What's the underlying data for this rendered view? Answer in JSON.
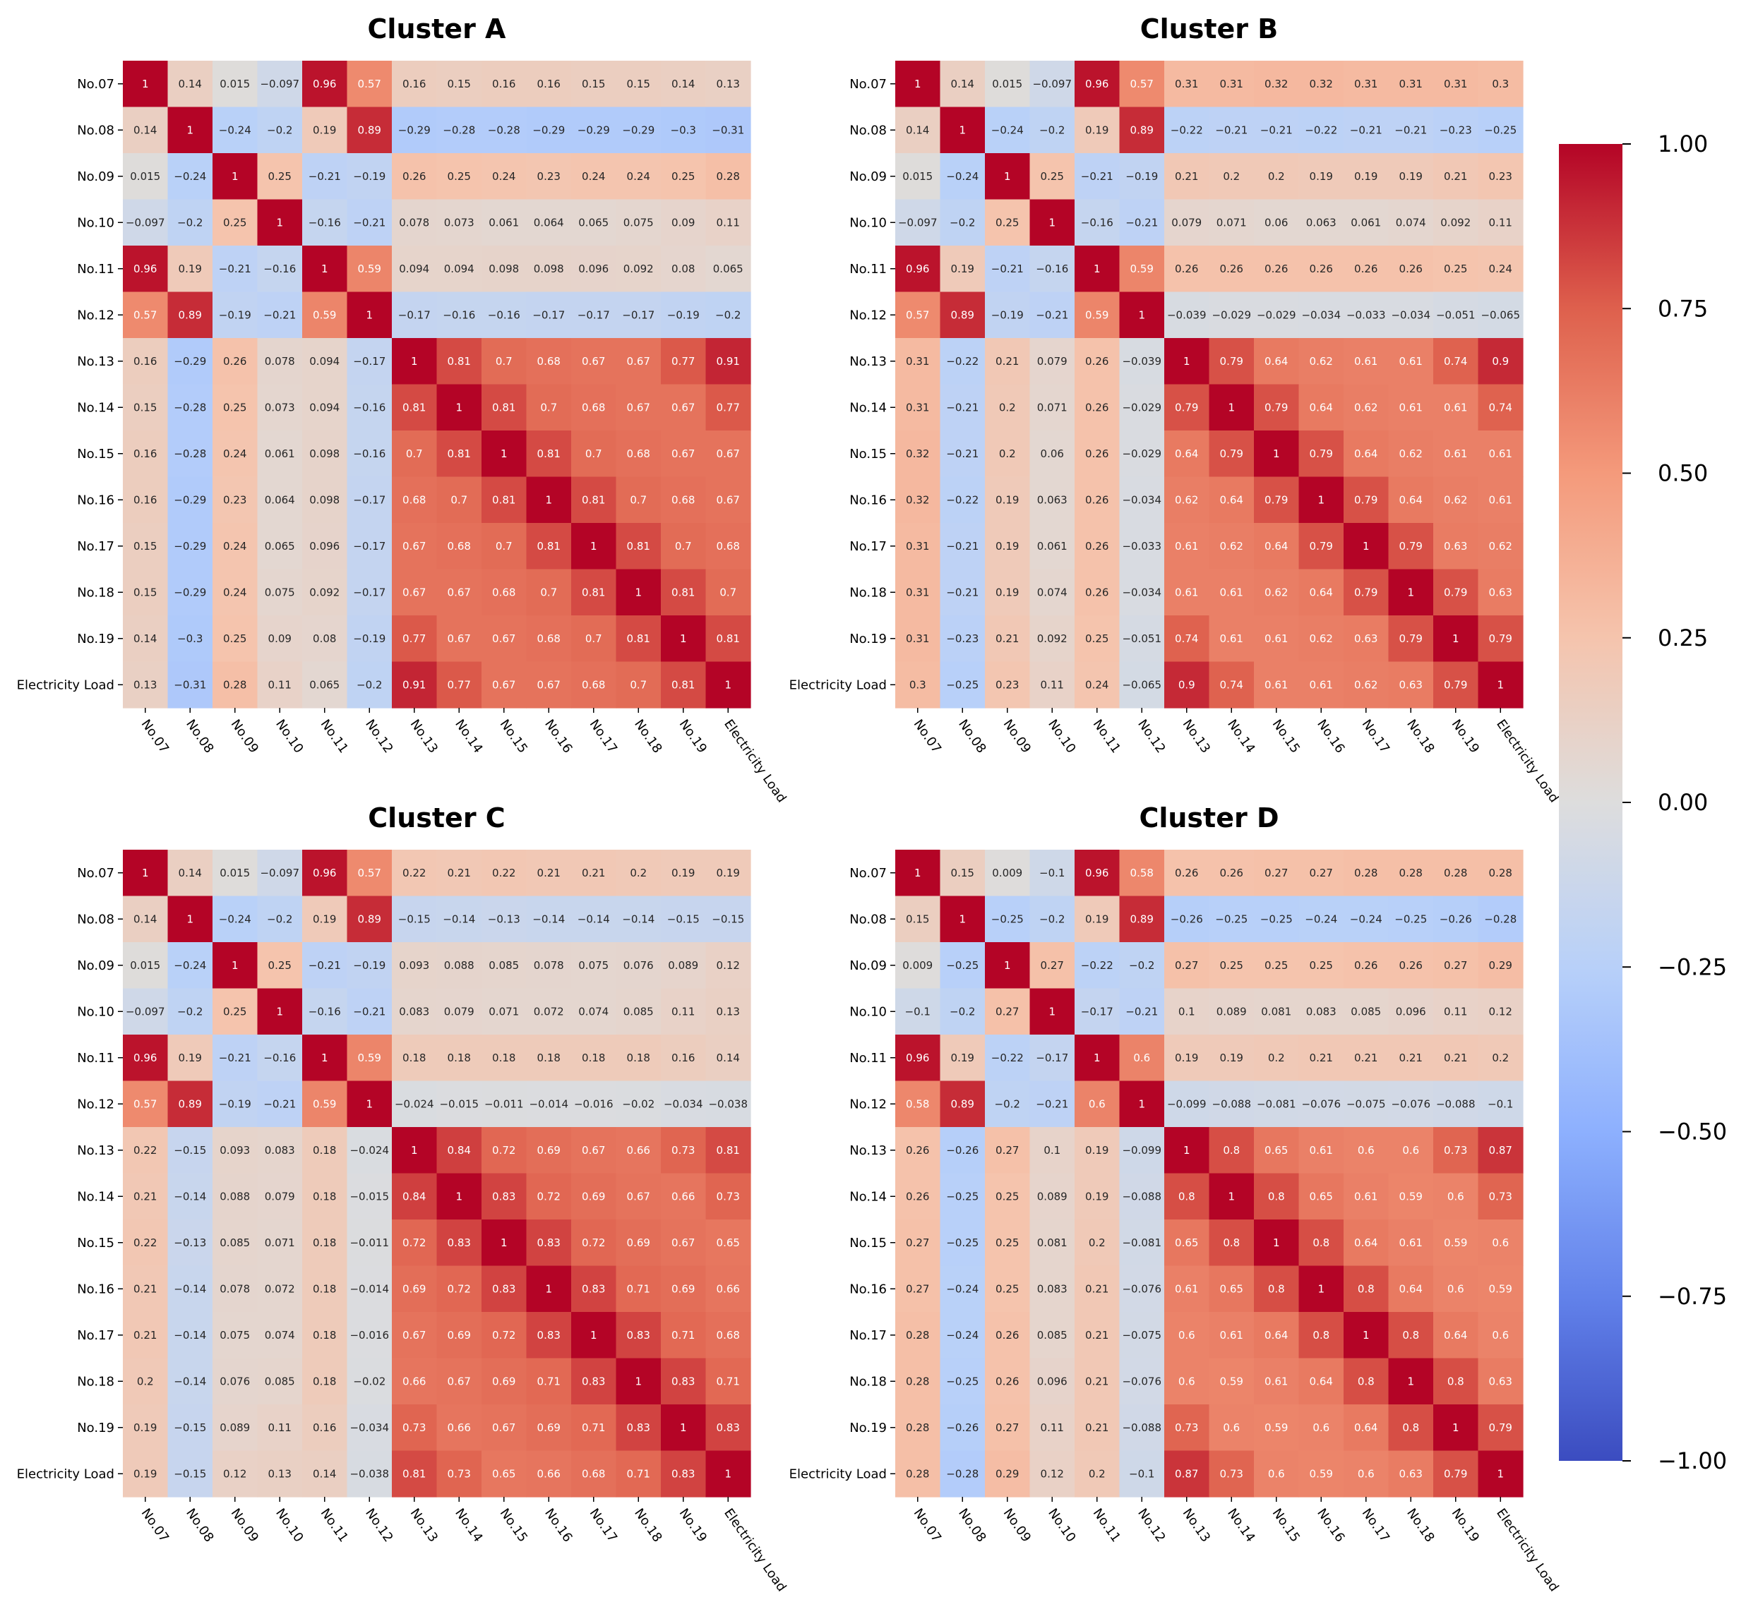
{
  "chart_data": [
    {
      "type": "heatmap",
      "title": "Cluster A",
      "labels": [
        "No.07",
        "No.08",
        "No.09",
        "No.10",
        "No.11",
        "No.12",
        "No.13",
        "No.14",
        "No.15",
        "No.16",
        "No.17",
        "No.18",
        "No.19",
        "Electricity Load"
      ],
      "values": [
        [
          1,
          0.14,
          0.015,
          -0.097,
          0.96,
          0.57,
          0.16,
          0.15,
          0.16,
          0.16,
          0.15,
          0.15,
          0.14,
          0.13
        ],
        [
          0.14,
          1,
          -0.24,
          -0.2,
          0.19,
          0.89,
          -0.29,
          -0.28,
          -0.28,
          -0.29,
          -0.29,
          -0.29,
          -0.3,
          -0.31
        ],
        [
          0.015,
          -0.24,
          1,
          0.25,
          -0.21,
          -0.19,
          0.26,
          0.25,
          0.24,
          0.23,
          0.24,
          0.24,
          0.25,
          0.28
        ],
        [
          -0.097,
          -0.2,
          0.25,
          1,
          -0.16,
          -0.21,
          0.078,
          0.073,
          0.061,
          0.064,
          0.065,
          0.075,
          0.09,
          0.11
        ],
        [
          0.96,
          0.19,
          -0.21,
          -0.16,
          1,
          0.59,
          0.094,
          0.094,
          0.098,
          0.098,
          0.096,
          0.092,
          0.08,
          0.065
        ],
        [
          0.57,
          0.89,
          -0.19,
          -0.21,
          0.59,
          1,
          -0.17,
          -0.16,
          -0.16,
          -0.17,
          -0.17,
          -0.17,
          -0.19,
          -0.2
        ],
        [
          0.16,
          -0.29,
          0.26,
          0.078,
          0.094,
          -0.17,
          1,
          0.81,
          0.7,
          0.68,
          0.67,
          0.67,
          0.77,
          0.91
        ],
        [
          0.15,
          -0.28,
          0.25,
          0.073,
          0.094,
          -0.16,
          0.81,
          1,
          0.81,
          0.7,
          0.68,
          0.67,
          0.67,
          0.77
        ],
        [
          0.16,
          -0.28,
          0.24,
          0.061,
          0.098,
          -0.16,
          0.7,
          0.81,
          1,
          0.81,
          0.7,
          0.68,
          0.67,
          0.67
        ],
        [
          0.16,
          -0.29,
          0.23,
          0.064,
          0.098,
          -0.17,
          0.68,
          0.7,
          0.81,
          1,
          0.81,
          0.7,
          0.68,
          0.67
        ],
        [
          0.15,
          -0.29,
          0.24,
          0.065,
          0.096,
          -0.17,
          0.67,
          0.68,
          0.7,
          0.81,
          1,
          0.81,
          0.7,
          0.68
        ],
        [
          0.15,
          -0.29,
          0.24,
          0.075,
          0.092,
          -0.17,
          0.67,
          0.67,
          0.68,
          0.7,
          0.81,
          1,
          0.81,
          0.7
        ],
        [
          0.14,
          -0.3,
          0.25,
          0.09,
          0.08,
          -0.19,
          0.77,
          0.67,
          0.67,
          0.68,
          0.7,
          0.81,
          1,
          0.81
        ],
        [
          0.13,
          -0.31,
          0.28,
          0.11,
          0.065,
          -0.2,
          0.91,
          0.77,
          0.67,
          0.67,
          0.68,
          0.7,
          0.81,
          1
        ]
      ]
    },
    {
      "type": "heatmap",
      "title": "Cluster B",
      "labels": [
        "No.07",
        "No.08",
        "No.09",
        "No.10",
        "No.11",
        "No.12",
        "No.13",
        "No.14",
        "No.15",
        "No.16",
        "No.17",
        "No.18",
        "No.19",
        "Electricity Load"
      ],
      "values": [
        [
          1,
          0.14,
          0.015,
          -0.097,
          0.96,
          0.57,
          0.31,
          0.31,
          0.32,
          0.32,
          0.31,
          0.31,
          0.31,
          0.3
        ],
        [
          0.14,
          1,
          -0.24,
          -0.2,
          0.19,
          0.89,
          -0.22,
          -0.21,
          -0.21,
          -0.22,
          -0.21,
          -0.21,
          -0.23,
          -0.25
        ],
        [
          0.015,
          -0.24,
          1,
          0.25,
          -0.21,
          -0.19,
          0.21,
          0.2,
          0.2,
          0.19,
          0.19,
          0.19,
          0.21,
          0.23
        ],
        [
          -0.097,
          -0.2,
          0.25,
          1,
          -0.16,
          -0.21,
          0.079,
          0.071,
          0.06,
          0.063,
          0.061,
          0.074,
          0.092,
          0.11
        ],
        [
          0.96,
          0.19,
          -0.21,
          -0.16,
          1,
          0.59,
          0.26,
          0.26,
          0.26,
          0.26,
          0.26,
          0.26,
          0.25,
          0.24
        ],
        [
          0.57,
          0.89,
          -0.19,
          -0.21,
          0.59,
          1,
          -0.039,
          -0.029,
          -0.029,
          -0.034,
          -0.033,
          -0.034,
          -0.051,
          -0.065
        ],
        [
          0.31,
          -0.22,
          0.21,
          0.079,
          0.26,
          -0.039,
          1,
          0.79,
          0.64,
          0.62,
          0.61,
          0.61,
          0.74,
          0.9
        ],
        [
          0.31,
          -0.21,
          0.2,
          0.071,
          0.26,
          -0.029,
          0.79,
          1,
          0.79,
          0.64,
          0.62,
          0.61,
          0.61,
          0.74
        ],
        [
          0.32,
          -0.21,
          0.2,
          0.06,
          0.26,
          -0.029,
          0.64,
          0.79,
          1,
          0.79,
          0.64,
          0.62,
          0.61,
          0.61
        ],
        [
          0.32,
          -0.22,
          0.19,
          0.063,
          0.26,
          -0.034,
          0.62,
          0.64,
          0.79,
          1,
          0.79,
          0.64,
          0.62,
          0.61
        ],
        [
          0.31,
          -0.21,
          0.19,
          0.061,
          0.26,
          -0.033,
          0.61,
          0.62,
          0.64,
          0.79,
          1,
          0.79,
          0.63,
          0.62
        ],
        [
          0.31,
          -0.21,
          0.19,
          0.074,
          0.26,
          -0.034,
          0.61,
          0.61,
          0.62,
          0.64,
          0.79,
          1,
          0.79,
          0.63
        ],
        [
          0.31,
          -0.23,
          0.21,
          0.092,
          0.25,
          -0.051,
          0.74,
          0.61,
          0.61,
          0.62,
          0.63,
          0.79,
          1,
          0.79
        ],
        [
          0.3,
          -0.25,
          0.23,
          0.11,
          0.24,
          -0.065,
          0.9,
          0.74,
          0.61,
          0.61,
          0.62,
          0.63,
          0.79,
          1
        ]
      ]
    },
    {
      "type": "heatmap",
      "title": "Cluster C",
      "labels": [
        "No.07",
        "No.08",
        "No.09",
        "No.10",
        "No.11",
        "No.12",
        "No.13",
        "No.14",
        "No.15",
        "No.16",
        "No.17",
        "No.18",
        "No.19",
        "Electricity Load"
      ],
      "values": [
        [
          1,
          0.14,
          0.015,
          -0.097,
          0.96,
          0.57,
          0.22,
          0.21,
          0.22,
          0.21,
          0.21,
          0.2,
          0.19,
          0.19
        ],
        [
          0.14,
          1,
          -0.24,
          -0.2,
          0.19,
          0.89,
          -0.15,
          -0.14,
          -0.13,
          -0.14,
          -0.14,
          -0.14,
          -0.15,
          -0.15
        ],
        [
          0.015,
          -0.24,
          1,
          0.25,
          -0.21,
          -0.19,
          0.093,
          0.088,
          0.085,
          0.078,
          0.075,
          0.076,
          0.089,
          0.12
        ],
        [
          -0.097,
          -0.2,
          0.25,
          1,
          -0.16,
          -0.21,
          0.083,
          0.079,
          0.071,
          0.072,
          0.074,
          0.085,
          0.11,
          0.13
        ],
        [
          0.96,
          0.19,
          -0.21,
          -0.16,
          1,
          0.59,
          0.18,
          0.18,
          0.18,
          0.18,
          0.18,
          0.18,
          0.16,
          0.14
        ],
        [
          0.57,
          0.89,
          -0.19,
          -0.21,
          0.59,
          1,
          -0.024,
          -0.015,
          -0.011,
          -0.014,
          -0.016,
          -0.02,
          -0.034,
          -0.038
        ],
        [
          0.22,
          -0.15,
          0.093,
          0.083,
          0.18,
          -0.024,
          1,
          0.84,
          0.72,
          0.69,
          0.67,
          0.66,
          0.73,
          0.81
        ],
        [
          0.21,
          -0.14,
          0.088,
          0.079,
          0.18,
          -0.015,
          0.84,
          1,
          0.83,
          0.72,
          0.69,
          0.67,
          0.66,
          0.73
        ],
        [
          0.22,
          -0.13,
          0.085,
          0.071,
          0.18,
          -0.011,
          0.72,
          0.83,
          1,
          0.83,
          0.72,
          0.69,
          0.67,
          0.65
        ],
        [
          0.21,
          -0.14,
          0.078,
          0.072,
          0.18,
          -0.014,
          0.69,
          0.72,
          0.83,
          1,
          0.83,
          0.71,
          0.69,
          0.66
        ],
        [
          0.21,
          -0.14,
          0.075,
          0.074,
          0.18,
          -0.016,
          0.67,
          0.69,
          0.72,
          0.83,
          1,
          0.83,
          0.71,
          0.68
        ],
        [
          0.2,
          -0.14,
          0.076,
          0.085,
          0.18,
          -0.02,
          0.66,
          0.67,
          0.69,
          0.71,
          0.83,
          1,
          0.83,
          0.71
        ],
        [
          0.19,
          -0.15,
          0.089,
          0.11,
          0.16,
          -0.034,
          0.73,
          0.66,
          0.67,
          0.69,
          0.71,
          0.83,
          1,
          0.83
        ],
        [
          0.19,
          -0.15,
          0.12,
          0.13,
          0.14,
          -0.038,
          0.81,
          0.73,
          0.65,
          0.66,
          0.68,
          0.71,
          0.83,
          1
        ]
      ]
    },
    {
      "type": "heatmap",
      "title": "Cluster D",
      "labels": [
        "No.07",
        "No.08",
        "No.09",
        "No.10",
        "No.11",
        "No.12",
        "No.13",
        "No.14",
        "No.15",
        "No.16",
        "No.17",
        "No.18",
        "No.19",
        "Electricity Load"
      ],
      "values": [
        [
          1,
          0.15,
          0.009,
          -0.1,
          0.96,
          0.58,
          0.26,
          0.26,
          0.27,
          0.27,
          0.28,
          0.28,
          0.28,
          0.28
        ],
        [
          0.15,
          1,
          -0.25,
          -0.2,
          0.19,
          0.89,
          -0.26,
          -0.25,
          -0.25,
          -0.24,
          -0.24,
          -0.25,
          -0.26,
          -0.28
        ],
        [
          0.009,
          -0.25,
          1,
          0.27,
          -0.22,
          -0.2,
          0.27,
          0.25,
          0.25,
          0.25,
          0.26,
          0.26,
          0.27,
          0.29
        ],
        [
          -0.1,
          -0.2,
          0.27,
          1,
          -0.17,
          -0.21,
          0.1,
          0.089,
          0.081,
          0.083,
          0.085,
          0.096,
          0.11,
          0.12
        ],
        [
          0.96,
          0.19,
          -0.22,
          -0.17,
          1,
          0.6,
          0.19,
          0.19,
          0.2,
          0.21,
          0.21,
          0.21,
          0.21,
          0.2
        ],
        [
          0.58,
          0.89,
          -0.2,
          -0.21,
          0.6,
          1,
          -0.099,
          -0.088,
          -0.081,
          -0.076,
          -0.075,
          -0.076,
          -0.088,
          -0.1
        ],
        [
          0.26,
          -0.26,
          0.27,
          0.1,
          0.19,
          -0.099,
          1,
          0.8,
          0.65,
          0.61,
          0.6,
          0.6,
          0.73,
          0.87
        ],
        [
          0.26,
          -0.25,
          0.25,
          0.089,
          0.19,
          -0.088,
          0.8,
          1,
          0.8,
          0.65,
          0.61,
          0.59,
          0.6,
          0.73
        ],
        [
          0.27,
          -0.25,
          0.25,
          0.081,
          0.2,
          -0.081,
          0.65,
          0.8,
          1,
          0.8,
          0.64,
          0.61,
          0.59,
          0.6
        ],
        [
          0.27,
          -0.24,
          0.25,
          0.083,
          0.21,
          -0.076,
          0.61,
          0.65,
          0.8,
          1,
          0.8,
          0.64,
          0.6,
          0.59
        ],
        [
          0.28,
          -0.24,
          0.26,
          0.085,
          0.21,
          -0.075,
          0.6,
          0.61,
          0.64,
          0.8,
          1,
          0.8,
          0.64,
          0.6
        ],
        [
          0.28,
          -0.25,
          0.26,
          0.096,
          0.21,
          -0.076,
          0.6,
          0.59,
          0.61,
          0.64,
          0.8,
          1,
          0.8,
          0.63
        ],
        [
          0.28,
          -0.26,
          0.27,
          0.11,
          0.21,
          -0.088,
          0.73,
          0.6,
          0.59,
          0.6,
          0.64,
          0.8,
          1,
          0.79
        ],
        [
          0.28,
          -0.28,
          0.29,
          0.12,
          0.2,
          -0.1,
          0.87,
          0.73,
          0.6,
          0.59,
          0.6,
          0.63,
          0.79,
          1
        ]
      ]
    }
  ],
  "colorbar": {
    "colormap": "coolwarm",
    "vmin": -1,
    "vmax": 1,
    "ticks": [
      1,
      0.75,
      0.5,
      0.25,
      0,
      -0.25,
      -0.5,
      -0.75,
      -1
    ],
    "tick_labels": [
      "1.00",
      "0.75",
      "0.50",
      "0.25",
      "0.00",
      "−0.25",
      "−0.50",
      "−0.75",
      "−1.00"
    ]
  }
}
